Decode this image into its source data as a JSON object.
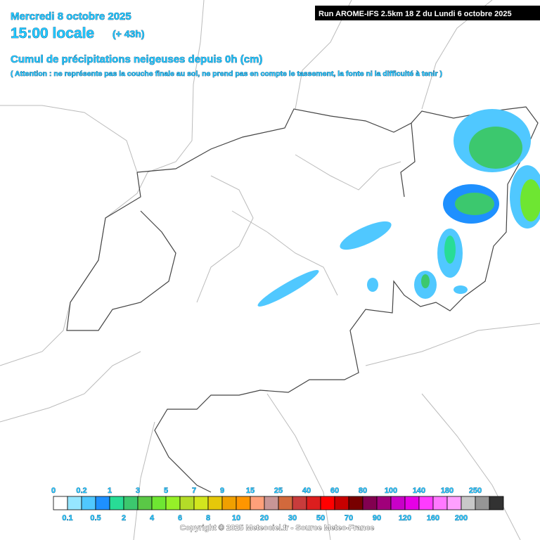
{
  "header": {
    "date": "Mercredi 8 octobre 2025",
    "time": "15:00 locale",
    "lead": "(+ 43h)",
    "run": "Run AROME-IFS 2.5km 18 Z du Lundi 6 octobre 2025",
    "title": "Cumul de précipitations neigeuses depuis 0h (cm)",
    "note": "( Attention : ne représente pas la couche finale au sol, ne prend pas en compte le tassement, la fonte ni la difficulté à tenir )"
  },
  "legend": {
    "labels": [
      0,
      0.1,
      0.2,
      0.5,
      1,
      2,
      3,
      4,
      5,
      6,
      7,
      8,
      9,
      10,
      15,
      20,
      25,
      30,
      40,
      50,
      60,
      70,
      80,
      90,
      100,
      120,
      140,
      160,
      180,
      200,
      250
    ],
    "colors": [
      "#ffffff",
      "#96e6ff",
      "#50c8ff",
      "#1e90ff",
      "#28dc96",
      "#3cc86e",
      "#5ac846",
      "#6ee632",
      "#96f028",
      "#b4dc28",
      "#d2e61e",
      "#e6c80a",
      "#f0a000",
      "#ff9600",
      "#ffa07a",
      "#c89696",
      "#d2693c",
      "#c83c3c",
      "#dc1e1e",
      "#ff0000",
      "#c80000",
      "#780000",
      "#820050",
      "#a0007a",
      "#c800c8",
      "#e600e6",
      "#ff3cff",
      "#ff78ff",
      "#ffa0ff",
      "#c8c8c8",
      "#969696",
      "#323232"
    ]
  },
  "footer": "Copyright © 2025 Meteociel.fr - Source Meteo-France"
}
